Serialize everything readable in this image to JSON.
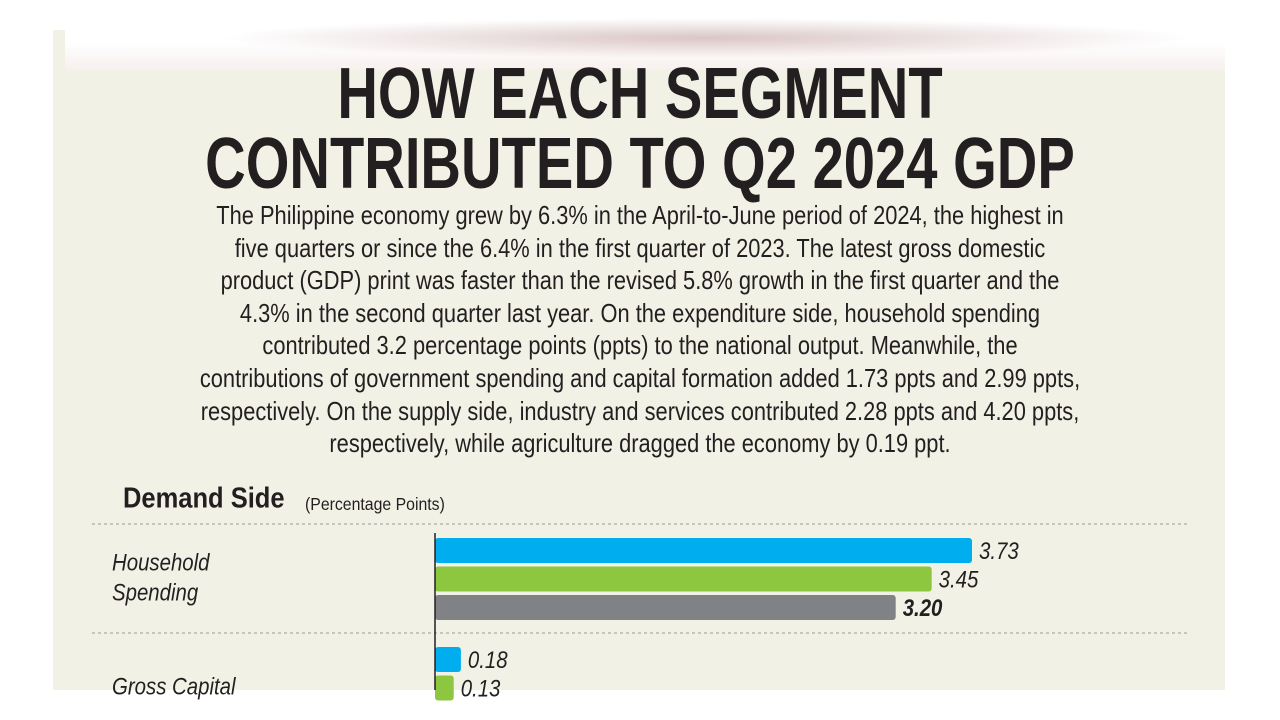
{
  "header": {
    "title": [
      "HOW EACH SEGMENT",
      "CONTRIBUTED TO Q2 2024 GDP"
    ],
    "body": [
      "The Philippine economy grew by 6.3% in the April-to-June period of 2024, the highest in",
      "five quarters or since the 6.4% in the first quarter of 2023. The latest gross domestic",
      "product (GDP) print was faster than the revised 5.8% growth in the first quarter and the",
      "4.3% in the second quarter last year. On the expenditure side, household spending",
      "contributed 3.2 percentage points (ppts) to the national output. Meanwhile, the",
      "contributions of government spending and capital formation added 1.73 ppts and 2.99 ppts,",
      "respectively. On the supply side, industry and services contributed 2.28 ppts and 4.20 ppts,",
      "respectively, while agriculture dragged the economy by 0.19 ppt."
    ]
  },
  "chart_data": {
    "type": "bar",
    "orientation": "horizontal",
    "title": "Demand Side",
    "subtitle": "(Percentage Points)",
    "categories": [
      [
        "Household",
        "Spending"
      ],
      [
        "Gross Capital"
      ]
    ],
    "series": [
      {
        "color": "#00aeef",
        "values": [
          3.73,
          0.18
        ],
        "value_labels": [
          "3.73",
          "0.18"
        ]
      },
      {
        "color": "#8dc63f",
        "values": [
          3.45,
          0.13
        ],
        "value_labels": [
          "3.45",
          "0.13"
        ]
      },
      {
        "color": "#808285",
        "values": [
          3.2,
          null
        ],
        "value_labels": [
          "3.20",
          null
        ]
      }
    ]
  }
}
